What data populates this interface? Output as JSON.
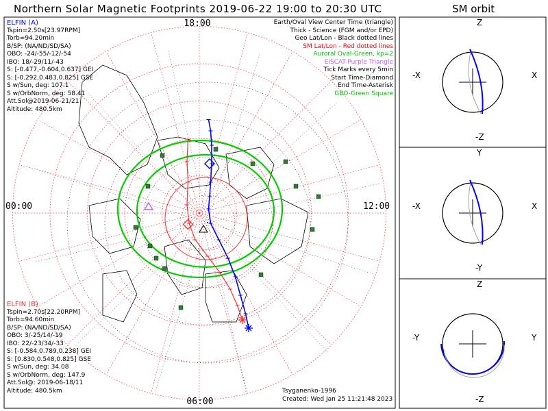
{
  "title": "Northern Solar Magnetic Footprints 2019-06-22 19:00 to 20:30 UTC",
  "orbit_title": "SM orbit",
  "colors": {
    "elfin_a": "#0000ff",
    "elfin_b": "#ff3030",
    "aurora": "#00d000",
    "eiscat": "#c060e0",
    "ground": "#2e7d32",
    "grid": "#ff3030",
    "geo": "#000000"
  },
  "clock_labels": {
    "top": "18:00",
    "left": "00:00",
    "right": "12:00",
    "bottom": "06:00"
  },
  "legend": [
    {
      "text": "Earth/Oval View Center Time (triangle)",
      "color": "#000000"
    },
    {
      "text": "Thick - Science (FGM and/or EPD)",
      "color": "#000000"
    },
    {
      "text": "Geo Lat/Lon - Black dotted lines",
      "color": "#000000"
    },
    {
      "text": "SM Lat/Lon - Red dotted lines",
      "color": "#ff0000"
    },
    {
      "text": "Auroral Oval-Green, kp=2",
      "color": "#00c000"
    },
    {
      "text": "EISCAT-Purple Triangle",
      "color": "#c060e0"
    },
    {
      "text": "Tick Marks every 5min",
      "color": "#000000"
    },
    {
      "text": "Start Time-Diamond",
      "color": "#000000"
    },
    {
      "text": "End Time-Asterisk",
      "color": "#000000"
    },
    {
      "text": "GBO-Green Square",
      "color": "#00c000"
    }
  ],
  "elfin_a": {
    "name": "ELFIN (A)",
    "lines": [
      "Tspin=2.50s[23.97RPM]",
      "Torb=94.20min",
      "B/SP: (NA/ND/SD/SA)",
      "OBO: -24/-55/-12/-54",
      "IBO: 18/-29/11/-43",
      "S: [-0.477,-0.604,0.637] GEI",
      "S: [-0.292,0.483,0.825] GSE",
      "S w/Sun, deg: 107.1",
      "S w/OrbNorm, deg: 58.41",
      "Att.Sol@2019-06-21/21",
      "Altitude: 480.5km"
    ]
  },
  "elfin_b": {
    "name": "ELFIN (B)",
    "lines": [
      "Tspin=2.70s[22.20RPM]",
      "Torb=94.60min",
      "B/SP: (NA/ND/SD/SA)",
      "OBO: 3/-25/14/-19",
      "IBO: 22/-23/34/-33",
      "S: [-0.584,0.789,0.238] GEI",
      "S: [0.830,0.548,0.825] GSE",
      "S w/Sun, deg: 34.08",
      "S w/OrbNorm, deg: 147.9",
      "Att.Sol@: 2019-06-18/11",
      "Altitude: 480.5km"
    ]
  },
  "credits": {
    "model": "Tsyganenko-1996",
    "created": "Created: Wed Jan 25 11:21:48 2023"
  },
  "orbit_panels": [
    {
      "top": "Z",
      "bottom": "-Z",
      "left": "-X",
      "right": "X"
    },
    {
      "top": "Y",
      "bottom": "-Y",
      "left": "-X",
      "right": "X"
    },
    {
      "top": "Z",
      "bottom": "-Z",
      "left": "-Y",
      "right": "Y"
    }
  ],
  "chart_data": {
    "type": "polar-map",
    "projection": "north-pole SM magnetic local time",
    "time_range": [
      "2019-06-22 19:00",
      "2019-06-22 20:30"
    ],
    "sm_latitude_circles_deg": [
      80,
      70,
      60,
      50,
      40
    ],
    "mlt_radial_lines_hours": 24,
    "series": [
      {
        "name": "ELFIN (A)",
        "color": "#0000ff",
        "footprint_track": [
          [
            0.45,
            -4.55
          ],
          [
            0.55,
            -4.0
          ],
          [
            0.6,
            -3.3
          ],
          [
            0.6,
            -2.4
          ],
          [
            0.55,
            -1.5
          ],
          [
            0.5,
            -0.8
          ],
          [
            0.45,
            -0.2
          ],
          [
            0.55,
            0.5
          ],
          [
            0.95,
            1.3
          ],
          [
            1.4,
            2.2
          ],
          [
            1.75,
            3.1
          ],
          [
            2.0,
            4.0
          ],
          [
            2.25,
            4.9
          ],
          [
            2.4,
            5.6
          ]
        ],
        "start_marker": [
          0.5,
          -2.4
        ],
        "end_marker": [
          2.4,
          5.6
        ]
      },
      {
        "name": "ELFIN (B)",
        "color": "#ff3030",
        "footprint_track": [
          [
            -0.55,
            -3.6
          ],
          [
            -0.6,
            -2.5
          ],
          [
            -0.55,
            -1.5
          ],
          [
            -0.6,
            -0.4
          ],
          [
            -0.5,
            0.5
          ],
          [
            -0.2,
            1.3
          ],
          [
            0.4,
            2.1
          ],
          [
            1.0,
            2.9
          ],
          [
            1.5,
            3.7
          ],
          [
            1.85,
            4.5
          ],
          [
            2.1,
            5.2
          ]
        ],
        "start_marker": [
          -0.55,
          0.55
        ],
        "end_marker": [
          2.1,
          5.2
        ]
      },
      {
        "name": "Auroral Oval kp=2",
        "color": "#00d000",
        "type": "oval",
        "offset_from_pole": [
          0.2,
          0.3
        ]
      }
    ],
    "ground_stations": [
      [
        4.7,
        -1.3
      ],
      [
        5.8,
        -0.8
      ],
      [
        5.5,
        0.8
      ],
      [
        -2.5,
        -1.3
      ],
      [
        -2.4,
        1.6
      ],
      [
        -3.1,
        0.7
      ],
      [
        -1.7,
        2.7
      ],
      [
        -1.8,
        -2.8
      ],
      [
        3.0,
        3.0
      ],
      [
        4.2,
        -2.5
      ],
      [
        0.8,
        -3.1
      ],
      [
        2.6,
        -2.4
      ],
      [
        -0.9,
        4.6
      ],
      [
        -2.1,
        2.2
      ]
    ]
  }
}
